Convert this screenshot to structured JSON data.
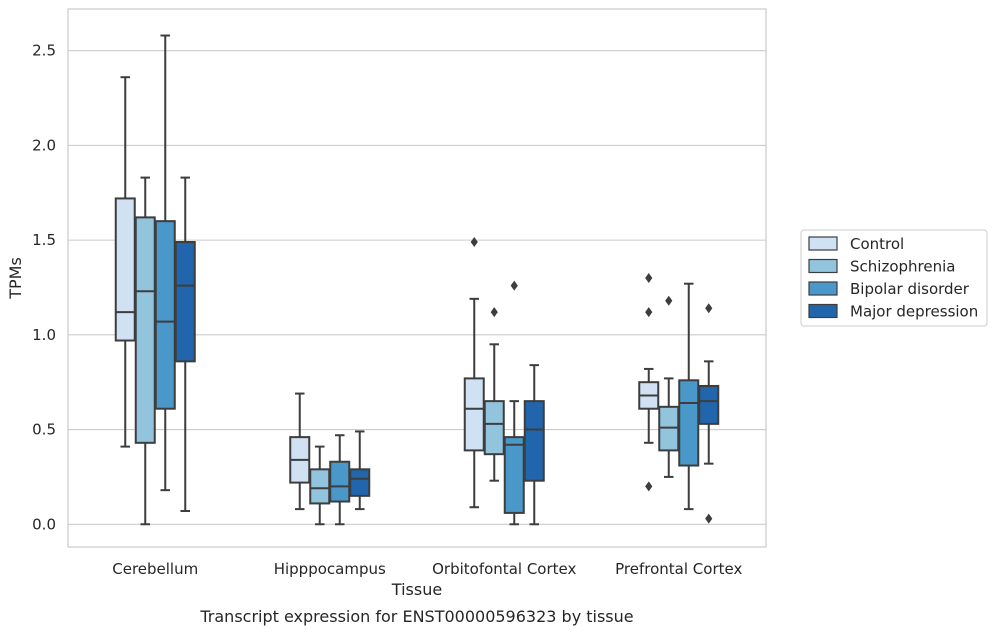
{
  "chart_data": {
    "type": "box",
    "xlabel": "Tissue",
    "ylabel": "TPMs",
    "caption": "Transcript expression for ENST00000596323 by tissue",
    "ylim": [
      -0.12,
      2.72
    ],
    "yticks": [
      0.0,
      0.5,
      1.0,
      1.5,
      2.0,
      2.5
    ],
    "ytick_labels": [
      "0.0",
      "0.5",
      "1.0",
      "1.5",
      "2.0",
      "2.5"
    ],
    "grid": "horizontal",
    "legend_position": "right",
    "categories": [
      "Cerebellum",
      "Hipppocampus",
      "Orbitofontal Cortex",
      "Prefrontal Cortex"
    ],
    "series": [
      {
        "name": "Control",
        "color": "#cfe1f2",
        "boxes": [
          {
            "whisker_low": 0.41,
            "q1": 0.97,
            "median": 1.12,
            "q3": 1.72,
            "whisker_high": 2.36,
            "outliers": []
          },
          {
            "whisker_low": 0.08,
            "q1": 0.22,
            "median": 0.34,
            "q3": 0.46,
            "whisker_high": 0.69,
            "outliers": []
          },
          {
            "whisker_low": 0.09,
            "q1": 0.39,
            "median": 0.61,
            "q3": 0.77,
            "whisker_high": 1.19,
            "outliers": [
              1.49
            ]
          },
          {
            "whisker_low": 0.43,
            "q1": 0.61,
            "median": 0.68,
            "q3": 0.75,
            "whisker_high": 0.82,
            "outliers": [
              1.3,
              1.12,
              0.2
            ]
          }
        ]
      },
      {
        "name": "Schizophrenia",
        "color": "#93c4de",
        "boxes": [
          {
            "whisker_low": 0.0,
            "q1": 0.43,
            "median": 1.23,
            "q3": 1.62,
            "whisker_high": 1.83,
            "outliers": []
          },
          {
            "whisker_low": 0.0,
            "q1": 0.11,
            "median": 0.19,
            "q3": 0.29,
            "whisker_high": 0.41,
            "outliers": []
          },
          {
            "whisker_low": 0.23,
            "q1": 0.37,
            "median": 0.53,
            "q3": 0.65,
            "whisker_high": 0.95,
            "outliers": [
              1.12
            ]
          },
          {
            "whisker_low": 0.25,
            "q1": 0.39,
            "median": 0.51,
            "q3": 0.62,
            "whisker_high": 0.77,
            "outliers": [
              1.18
            ]
          }
        ]
      },
      {
        "name": "Bipolar disorder",
        "color": "#4a98c9",
        "boxes": [
          {
            "whisker_low": 0.18,
            "q1": 0.61,
            "median": 1.07,
            "q3": 1.6,
            "whisker_high": 2.58,
            "outliers": []
          },
          {
            "whisker_low": 0.0,
            "q1": 0.12,
            "median": 0.2,
            "q3": 0.33,
            "whisker_high": 0.47,
            "outliers": []
          },
          {
            "whisker_low": 0.0,
            "q1": 0.06,
            "median": 0.42,
            "q3": 0.46,
            "whisker_high": 0.65,
            "outliers": [
              1.26
            ]
          },
          {
            "whisker_low": 0.08,
            "q1": 0.31,
            "median": 0.64,
            "q3": 0.76,
            "whisker_high": 1.27,
            "outliers": []
          }
        ]
      },
      {
        "name": "Major depression",
        "color": "#2166ac",
        "boxes": [
          {
            "whisker_low": 0.07,
            "q1": 0.86,
            "median": 1.26,
            "q3": 1.49,
            "whisker_high": 1.83,
            "outliers": []
          },
          {
            "whisker_low": 0.08,
            "q1": 0.15,
            "median": 0.24,
            "q3": 0.29,
            "whisker_high": 0.49,
            "outliers": []
          },
          {
            "whisker_low": 0.0,
            "q1": 0.23,
            "median": 0.5,
            "q3": 0.65,
            "whisker_high": 0.84,
            "outliers": []
          },
          {
            "whisker_low": 0.32,
            "q1": 0.53,
            "median": 0.65,
            "q3": 0.73,
            "whisker_high": 0.86,
            "outliers": [
              1.14,
              0.03
            ]
          }
        ]
      }
    ]
  }
}
